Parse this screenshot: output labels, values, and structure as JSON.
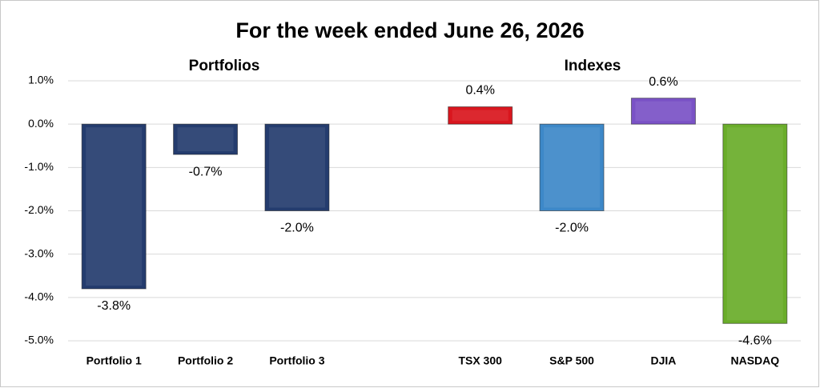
{
  "chart_data": {
    "type": "bar",
    "title": "For the week ended June 26, 2026",
    "annotations": [
      "Portfolios",
      "Indexes"
    ],
    "categories": [
      "Portfolio 1",
      "Portfolio 2",
      "Portfolio 3",
      null,
      "TSX 300",
      "S&P 500",
      "DJIA",
      "NASDAQ"
    ],
    "values": [
      -3.8,
      -0.7,
      -2.0,
      null,
      0.4,
      -2.0,
      0.6,
      -4.6
    ],
    "value_labels": [
      "-3.8%",
      "-0.7%",
      "-2.0%",
      null,
      "0.4%",
      "-2.0%",
      "0.6%",
      "-4.6%"
    ],
    "colors": [
      "#243c6e",
      "#243c6e",
      "#243c6e",
      null,
      "#d9161e",
      "#3d88c8",
      "#7a52c6",
      "#6aad2a"
    ],
    "ylim": [
      -5,
      1
    ],
    "yticks": [
      {
        "value": 1,
        "label": "1.0%"
      },
      {
        "value": 0,
        "label": "0.0%"
      },
      {
        "value": -1,
        "label": "-1.0%"
      },
      {
        "value": -2,
        "label": "-2.0%"
      },
      {
        "value": -3,
        "label": "-3.0%"
      },
      {
        "value": -4,
        "label": "-4.0%"
      },
      {
        "value": -5,
        "label": "-5.0%"
      }
    ],
    "grid": true
  }
}
